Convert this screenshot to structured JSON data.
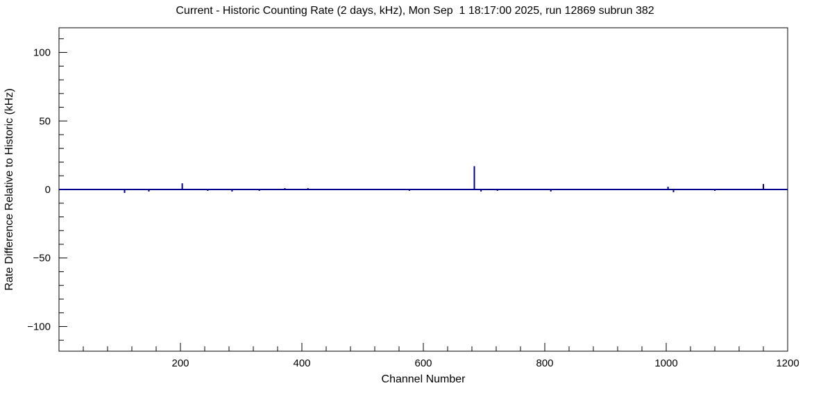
{
  "page": {
    "background": "#ffffff"
  },
  "chart_data": {
    "type": "line",
    "title": "Current - Historic Counting Rate (2 days, kHz), Mon Sep  1 18:17:00 2025, run 12869 subrun 382",
    "xlabel": "Channel Number",
    "ylabel": "Rate Difference Relative to Historic (kHz)",
    "xlim": [
      0,
      1200
    ],
    "ylim": [
      -118,
      118
    ],
    "x_major_ticks": [
      200,
      400,
      600,
      800,
      1000,
      1200
    ],
    "x_minor_step": 40,
    "y_major_ticks": [
      -100,
      -50,
      0,
      50,
      100
    ],
    "y_minor_step": 10,
    "grid": false,
    "legend": false,
    "baseline": 0,
    "line_color": "#00008b",
    "axis_color": "#000000",
    "spikes": [
      {
        "channel": 108,
        "value": -2.5
      },
      {
        "channel": 148,
        "value": -1.5
      },
      {
        "channel": 203,
        "value": 4.5
      },
      {
        "channel": 245,
        "value": -1
      },
      {
        "channel": 285,
        "value": -1.5
      },
      {
        "channel": 330,
        "value": -1
      },
      {
        "channel": 372,
        "value": 1
      },
      {
        "channel": 410,
        "value": 1
      },
      {
        "channel": 577,
        "value": -1
      },
      {
        "channel": 684,
        "value": 17
      },
      {
        "channel": 695,
        "value": -1.5
      },
      {
        "channel": 722,
        "value": -1
      },
      {
        "channel": 810,
        "value": -1.5
      },
      {
        "channel": 1003,
        "value": 2
      },
      {
        "channel": 1012,
        "value": -2
      },
      {
        "channel": 1080,
        "value": -1
      },
      {
        "channel": 1160,
        "value": 4
      }
    ]
  }
}
